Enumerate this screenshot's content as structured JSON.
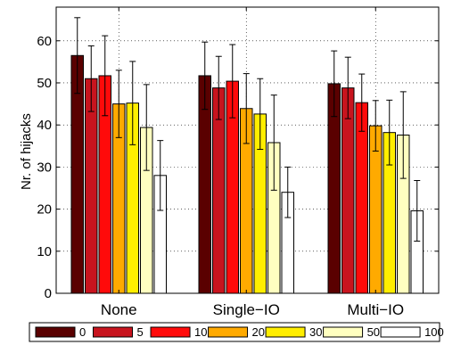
{
  "chart_data": {
    "type": "bar",
    "ylabel": "Nr. of hijacks",
    "xlabel": "",
    "ylim": [
      0,
      68
    ],
    "yticks": [
      0,
      10,
      20,
      30,
      40,
      50,
      60
    ],
    "grid": true,
    "legend_position": "bottom",
    "categories": [
      "None",
      "Single−IO",
      "Multi−IO"
    ],
    "series": [
      {
        "name": "0",
        "color": "#5a0000",
        "values": [
          56.5,
          51.7,
          49.8
        ],
        "err": [
          9.0,
          8.0,
          7.8
        ]
      },
      {
        "name": "5",
        "color": "#c8141e",
        "values": [
          51.0,
          48.8,
          48.8
        ],
        "err": [
          7.8,
          7.5,
          7.3
        ]
      },
      {
        "name": "10",
        "color": "#ff0a0a",
        "values": [
          51.7,
          50.4,
          45.3
        ],
        "err": [
          9.5,
          8.7,
          6.8
        ]
      },
      {
        "name": "20",
        "color": "#ffaa00",
        "values": [
          45.0,
          43.9,
          39.8
        ],
        "err": [
          8.0,
          8.3,
          6.0
        ]
      },
      {
        "name": "30",
        "color": "#ffee00",
        "values": [
          45.2,
          42.6,
          38.2
        ],
        "err": [
          9.9,
          8.4,
          7.7
        ]
      },
      {
        "name": "50",
        "color": "#ffffc0",
        "values": [
          39.4,
          35.8,
          37.6
        ],
        "err": [
          10.2,
          11.3,
          10.3
        ]
      },
      {
        "name": "100",
        "color": "#ffffff",
        "values": [
          28.0,
          24.0,
          19.6
        ],
        "err": [
          8.3,
          6.0,
          7.2
        ]
      }
    ]
  }
}
